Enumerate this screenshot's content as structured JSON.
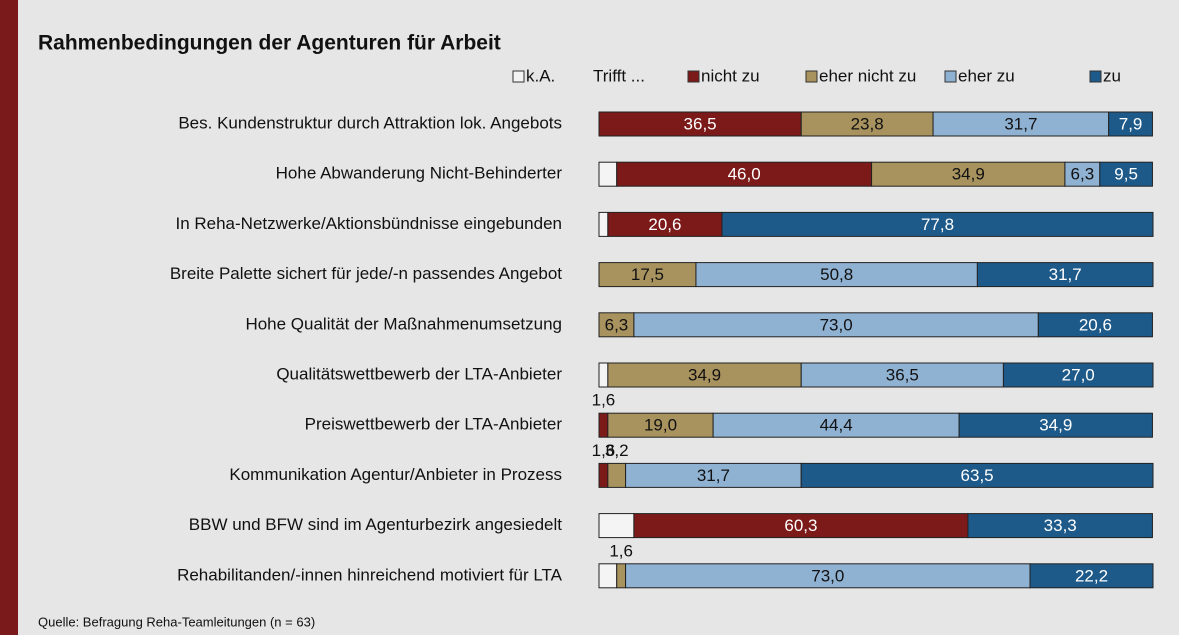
{
  "chart_data": {
    "type": "stacked_barh",
    "title": "Rahmenbedingungen der Agenturen für Arbeit",
    "legend_prefix": "Trifft ...",
    "source": "Quelle: Befragung Reha-Teamleitungen (n = 63)",
    "categories": [
      "Bes. Kundenstruktur durch Attraktion lok. Angebots",
      "Hohe Abwanderung Nicht-Behinderter",
      "In Reha-Netzwerke/Aktionsbündnisse eingebunden",
      "Breite Palette sichert für jede/-n passendes Angebot",
      "Hohe Qualität der Maßnahmenumsetzung",
      "Qualitätswettbewerb der LTA-Anbieter",
      "Preiswettbewerb der LTA-Anbieter",
      "Kommunikation Agentur/Anbieter in Prozess",
      "BBW und BFW sind im Agenturbezirk angesiedelt",
      "Rehabilitanden/-innen hinreichend motiviert für LTA"
    ],
    "xlim": [
      0,
      100
    ],
    "series": [
      {
        "name": "k.A.",
        "color": "#f4f4f4",
        "values": [
          0,
          3.2,
          1.6,
          0,
          0,
          1.6,
          0,
          0,
          6.3,
          3.2
        ],
        "value_labels": [
          null,
          null,
          null,
          null,
          null,
          null,
          null,
          null,
          null,
          null
        ]
      },
      {
        "name": "nicht zu",
        "color": "#7c1a1a",
        "values": [
          36.5,
          46.0,
          20.6,
          0,
          0,
          0,
          1.6,
          1.6,
          60.3,
          0
        ],
        "value_labels": [
          "36,5",
          "46,0",
          "20,6",
          null,
          null,
          null,
          "1,6",
          "1,6",
          "60,3",
          null
        ]
      },
      {
        "name": "eher nicht zu",
        "color": "#a8935f",
        "values": [
          23.8,
          34.9,
          0,
          17.5,
          6.3,
          34.9,
          19.0,
          3.2,
          0,
          1.6
        ],
        "value_labels": [
          "23,8",
          "34,9",
          null,
          "17,5",
          "6,3",
          "34,9",
          "19,0",
          "3,2",
          null,
          "1,6"
        ]
      },
      {
        "name": "eher zu",
        "color": "#8fb1d2",
        "values": [
          31.7,
          6.3,
          0,
          50.8,
          73.0,
          36.5,
          44.4,
          31.7,
          0,
          73.0
        ],
        "value_labels": [
          "31,7",
          "6,3",
          null,
          "50,8",
          "73,0",
          "36,5",
          "44,4",
          "31,7",
          null,
          "73,0"
        ]
      },
      {
        "name": "zu",
        "color": "#1d5a8a",
        "values": [
          7.9,
          9.5,
          77.8,
          31.7,
          20.6,
          27.0,
          34.9,
          63.5,
          33.3,
          22.2
        ],
        "value_labels": [
          "7,9",
          "9,5",
          "77,8",
          "31,7",
          "20,6",
          "27,0",
          "34,9",
          "63,5",
          "33,3",
          "22,2"
        ]
      }
    ]
  }
}
